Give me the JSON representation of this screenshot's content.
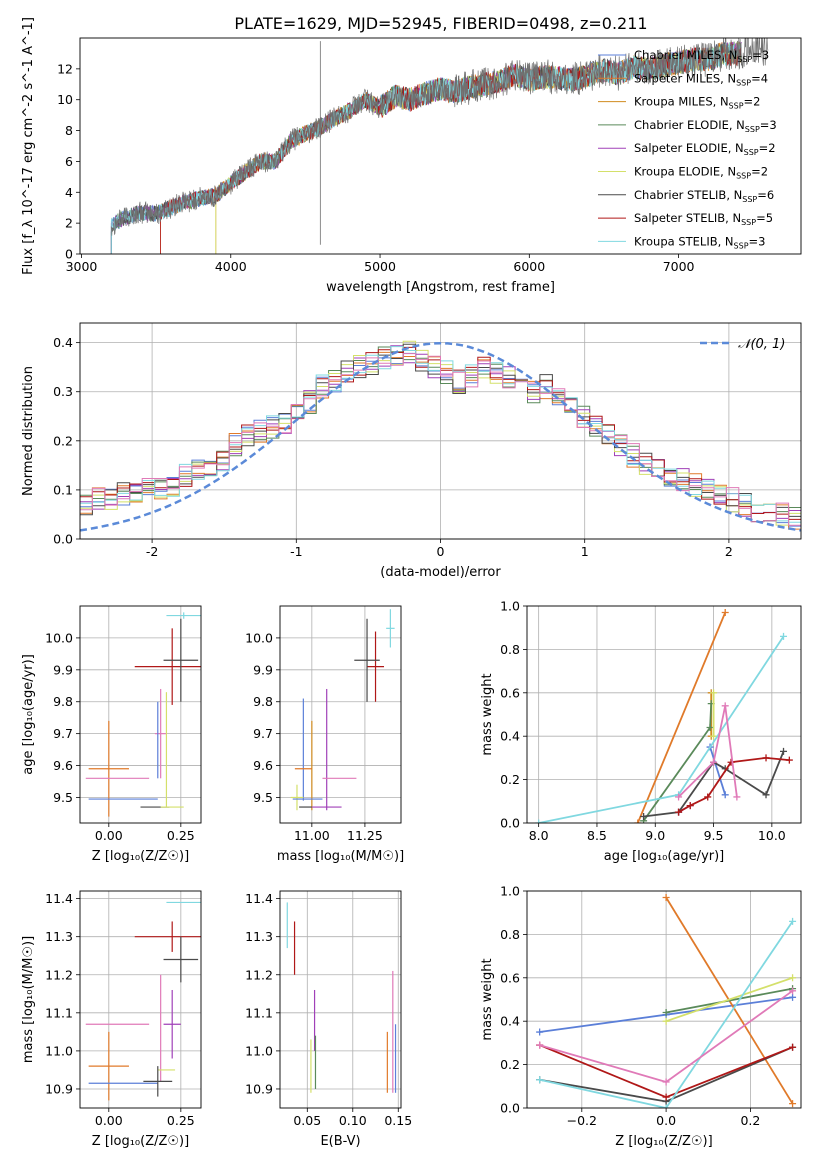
{
  "title": "PLATE=1629, MJD=52945, FIBERID=0498, z=0.211",
  "colors": {
    "chabrier_miles": "#5b7fd8",
    "salpeter_miles": "#e07a2a",
    "kroupa_miles": "#d18b1f",
    "chabrier_elodie": "#5a8a5a",
    "salpeter_elodie": "#a040b8",
    "kroupa_elodie": "#d4e06a",
    "chabrier_stelib": "#4a4a4a",
    "salpeter_stelib": "#b01818",
    "kroupa_stelib": "#80d8e0",
    "pink": "#e07ab8",
    "normal_curve": "#5b8ad8",
    "grid": "#b0b0b0"
  },
  "chart_data": [
    {
      "id": "spectrum",
      "type": "line",
      "xlabel": "wavelength [Angstrom, rest frame]",
      "ylabel": "Flux [f_λ 10^-17 erg cm^-2 s^-1 A^-1]",
      "xlim": [
        2990,
        7820
      ],
      "ylim": [
        0,
        14
      ],
      "xticks": [
        3000,
        4000,
        5000,
        6000,
        7000
      ],
      "yticks": [
        0,
        2,
        4,
        6,
        8,
        10,
        12
      ],
      "grid": false,
      "legend_position": "right",
      "legend": [
        {
          "label": "Chabrier MILES, N",
          "sub": "SSP",
          "suffix": "=3",
          "color": "#5b7fd8"
        },
        {
          "label": "Salpeter MILES, N",
          "sub": "SSP",
          "suffix": "=4",
          "color": "#e07a2a"
        },
        {
          "label": "Kroupa MILES, N",
          "sub": "SSP",
          "suffix": "=2",
          "color": "#d18b1f"
        },
        {
          "label": "Chabrier ELODIE, N",
          "sub": "SSP",
          "suffix": "=3",
          "color": "#5a8a5a"
        },
        {
          "label": "Salpeter ELODIE, N",
          "sub": "SSP",
          "suffix": "=2",
          "color": "#a040b8"
        },
        {
          "label": "Kroupa ELODIE, N",
          "sub": "SSP",
          "suffix": "=2",
          "color": "#d4e06a"
        },
        {
          "label": "Chabrier STELIB, N",
          "sub": "SSP",
          "suffix": "=6",
          "color": "#4a4a4a"
        },
        {
          "label": "Salpeter STELIB, N",
          "sub": "SSP",
          "suffix": "=5",
          "color": "#b01818"
        },
        {
          "label": "Kroupa STELIB, N",
          "sub": "SSP",
          "suffix": "=3",
          "color": "#80d8e0"
        }
      ],
      "series": [
        {
          "name": "data",
          "color": "#707070",
          "x": [
            3200,
            3300,
            3400,
            3500,
            3600,
            3700,
            3800,
            3900,
            4000,
            4100,
            4200,
            4300,
            4400,
            4500,
            4600,
            4700,
            4800,
            4900,
            5000,
            5100,
            5200,
            5300,
            5400,
            5500,
            5600,
            5700,
            5800,
            5900,
            6000,
            6100,
            6200,
            6300,
            6400,
            6500,
            6600,
            6700,
            6800,
            6900,
            7000,
            7100,
            7200,
            7300,
            7400,
            7500,
            7600
          ],
          "y": [
            1.9,
            2.4,
            2.7,
            2.6,
            3.0,
            3.4,
            3.6,
            3.8,
            4.6,
            5.3,
            6.0,
            6.0,
            7.3,
            7.8,
            8.2,
            8.8,
            9.3,
            10.0,
            9.5,
            10.2,
            10.0,
            10.4,
            10.7,
            10.5,
            10.8,
            11.0,
            11.2,
            11.6,
            11.3,
            11.5,
            11.4,
            11.3,
            11.6,
            11.9,
            11.7,
            12.1,
            12.0,
            12.2,
            12.4,
            12.6,
            12.6,
            13.0,
            13.0,
            13.3,
            13.3
          ]
        }
      ]
    },
    {
      "id": "residuals",
      "type": "step",
      "xlabel": "(data-model)/error",
      "ylabel": "Normed distribution",
      "xlim": [
        -2.5,
        2.5
      ],
      "ylim": [
        0,
        0.44
      ],
      "xticks": [
        -2,
        -1,
        0,
        1,
        2
      ],
      "yticks": [
        0.0,
        0.1,
        0.2,
        0.3,
        0.4
      ],
      "grid": true,
      "legend_position": "top-right",
      "legend_label": "𝒩(0, 1)",
      "normal": {
        "mean": 0,
        "sigma": 1
      },
      "hist_profile": [
        0.07,
        0.08,
        0.08,
        0.09,
        0.09,
        0.1,
        0.1,
        0.11,
        0.13,
        0.14,
        0.15,
        0.16,
        0.19,
        0.21,
        0.22,
        0.23,
        0.24,
        0.26,
        0.28,
        0.31,
        0.32,
        0.34,
        0.35,
        0.36,
        0.37,
        0.37,
        0.38,
        0.36,
        0.35,
        0.34,
        0.32,
        0.33,
        0.35,
        0.34,
        0.33,
        0.34,
        0.3,
        0.31,
        0.29,
        0.27,
        0.25,
        0.23,
        0.21,
        0.19,
        0.17,
        0.15,
        0.14,
        0.13,
        0.12,
        0.11,
        0.1,
        0.09,
        0.08,
        0.07,
        0.06,
        0.05,
        0.05,
        0.04
      ]
    },
    {
      "id": "age_vs_Z",
      "type": "errorbar",
      "xlabel": "Z [log₁₀(Z/Z☉)]",
      "ylabel": "age  [log₁₀(age/yr)]",
      "xlim": [
        -0.1,
        0.32
      ],
      "ylim": [
        9.42,
        10.1
      ],
      "xticks": [
        0.0,
        0.25
      ],
      "xticklabels": [
        "0.00",
        "0.25"
      ],
      "yticks": [
        9.5,
        9.6,
        9.7,
        9.8,
        9.9,
        10.0
      ],
      "grid": true,
      "points": [
        {
          "x": 0.26,
          "xerr": 0.06,
          "y": 10.07,
          "yerr": 0.01,
          "color": "#80d8e0"
        },
        {
          "x": 0.22,
          "xerr": 0.13,
          "y": 9.91,
          "yerr": 0.12,
          "color": "#b01818"
        },
        {
          "x": 0.25,
          "xerr": 0.06,
          "y": 9.93,
          "yerr": 0.13,
          "color": "#4a4a4a"
        },
        {
          "x": 0.18,
          "xerr": 0.02,
          "y": 9.7,
          "yerr": 0.14,
          "color": "#e07ab8"
        },
        {
          "x": 0.17,
          "xerr": 0.0,
          "y": 9.68,
          "yerr": 0.12,
          "color": "#5b7fd8"
        },
        {
          "x": 0.2,
          "xerr": 0.0,
          "y": 9.65,
          "yerr": 0.18,
          "color": "#d4e06a"
        },
        {
          "x": 0.0,
          "xerr": 0.07,
          "y": 9.59,
          "yerr": 0.15,
          "color": "#e07a2a"
        },
        {
          "x": 0.03,
          "xerr": 0.11,
          "y": 9.56,
          "yerr": 0.0,
          "color": "#e07ab8"
        },
        {
          "x": 0.05,
          "xerr": 0.12,
          "y": 9.495,
          "yerr": 0.0,
          "color": "#5b7fd8"
        },
        {
          "x": 0.16,
          "xerr": 0.05,
          "y": 9.47,
          "yerr": 0.0,
          "color": "#4a4a4a"
        },
        {
          "x": 0.22,
          "xerr": 0.04,
          "y": 9.47,
          "yerr": 0.0,
          "color": "#d4e06a"
        }
      ]
    },
    {
      "id": "age_vs_mass",
      "type": "errorbar",
      "xlabel": "mass [log₁₀(M/M☉)]",
      "ylabel": "",
      "xlim": [
        10.85,
        11.42
      ],
      "ylim": [
        9.42,
        10.1
      ],
      "xticks": [
        11.0,
        11.25
      ],
      "xticklabels": [
        "11.00",
        "11.25"
      ],
      "yticks": [
        9.5,
        9.6,
        9.7,
        9.8,
        9.9,
        10.0
      ],
      "grid": true,
      "points": [
        {
          "x": 11.37,
          "xerr": 0.02,
          "y": 10.03,
          "yerr": 0.06,
          "color": "#80d8e0"
        },
        {
          "x": 11.3,
          "xerr": 0.04,
          "y": 9.91,
          "yerr": 0.11,
          "color": "#b01818"
        },
        {
          "x": 11.26,
          "xerr": 0.06,
          "y": 9.93,
          "yerr": 0.13,
          "color": "#4a4a4a"
        },
        {
          "x": 10.96,
          "xerr": 0.0,
          "y": 9.65,
          "yerr": 0.16,
          "color": "#5b7fd8"
        },
        {
          "x": 11.07,
          "xerr": 0.0,
          "y": 9.65,
          "yerr": 0.19,
          "color": "#a040b8"
        },
        {
          "x": 11.0,
          "xerr": 0.0,
          "y": 9.6,
          "yerr": 0.14,
          "color": "#d18b1f"
        },
        {
          "x": 10.96,
          "xerr": 0.04,
          "y": 9.59,
          "yerr": 0.0,
          "color": "#e07a2a"
        },
        {
          "x": 11.13,
          "xerr": 0.08,
          "y": 9.56,
          "yerr": 0.0,
          "color": "#e07ab8"
        },
        {
          "x": 10.93,
          "xerr": 0.03,
          "y": 9.5,
          "yerr": 0.04,
          "color": "#d4e06a"
        },
        {
          "x": 10.98,
          "xerr": 0.07,
          "y": 9.495,
          "yerr": 0.0,
          "color": "#5b7fd8"
        },
        {
          "x": 11.07,
          "xerr": 0.07,
          "y": 9.47,
          "yerr": 0.0,
          "color": "#a040b8"
        },
        {
          "x": 10.97,
          "xerr": 0.03,
          "y": 9.47,
          "yerr": 0.0,
          "color": "#4a4a4a"
        }
      ]
    },
    {
      "id": "weight_vs_age",
      "type": "line",
      "xlabel": "age  [log₁₀(age/yr)]",
      "ylabel": "mass weight",
      "xlim": [
        7.9,
        10.25
      ],
      "ylim": [
        0,
        1
      ],
      "xticks": [
        8.0,
        8.5,
        9.0,
        9.5,
        10.0
      ],
      "xticklabels": [
        "8.0",
        "8.5",
        "9.0",
        "9.5",
        "10.0"
      ],
      "yticks": [
        0.0,
        0.2,
        0.4,
        0.6,
        0.8,
        1.0
      ],
      "grid": true,
      "series": [
        {
          "name": "Chabrier MILES",
          "color": "#5b7fd8",
          "x": [
            9.47,
            9.6
          ],
          "y": [
            0.35,
            0.13
          ]
        },
        {
          "name": "Salpeter MILES",
          "color": "#e07a2a",
          "x": [
            8.85,
            9.6
          ],
          "y": [
            0.0,
            0.97
          ]
        },
        {
          "name": "Kroupa MILES",
          "color": "#d18b1f",
          "x": [
            9.48,
            9.48
          ],
          "y": [
            0.4,
            0.6
          ]
        },
        {
          "name": "Chabrier ELODIE",
          "color": "#5a8a5a",
          "x": [
            8.9,
            9.47,
            9.48
          ],
          "y": [
            0.01,
            0.44,
            0.55
          ]
        },
        {
          "name": "Salpeter ELODIE",
          "color": "#a040b8",
          "x": [
            9.2,
            9.3
          ],
          "y": [
            0.05,
            0.08
          ]
        },
        {
          "name": "Kroupa ELODIE",
          "color": "#d4e06a",
          "x": [
            9.5,
            9.5
          ],
          "y": [
            0.4,
            0.6
          ]
        },
        {
          "name": "Chabrier STELIB",
          "color": "#4a4a4a",
          "x": [
            8.9,
            9.2,
            9.5,
            9.6,
            9.95,
            10.1
          ],
          "y": [
            0.03,
            0.05,
            0.28,
            0.25,
            0.13,
            0.33
          ]
        },
        {
          "name": "Salpeter STELIB",
          "color": "#b01818",
          "x": [
            9.2,
            9.3,
            9.45,
            9.65,
            9.95,
            10.15
          ],
          "y": [
            0.05,
            0.08,
            0.12,
            0.28,
            0.3,
            0.29
          ]
        },
        {
          "name": "Kroupa STELIB",
          "color": "#80d8e0",
          "x": [
            8.0,
            9.2,
            10.1
          ],
          "y": [
            0.0,
            0.13,
            0.86
          ]
        },
        {
          "name": "pink",
          "color": "#e07ab8",
          "x": [
            9.2,
            9.5,
            9.6,
            9.7
          ],
          "y": [
            0.12,
            0.28,
            0.54,
            0.12
          ]
        }
      ]
    },
    {
      "id": "mass_vs_Z",
      "type": "errorbar",
      "xlabel": "Z [log₁₀(Z/Z☉)]",
      "ylabel": "mass [log₁₀(M/M☉)]",
      "xlim": [
        -0.1,
        0.32
      ],
      "ylim": [
        10.85,
        11.42
      ],
      "xticks": [
        0.0,
        0.25
      ],
      "xticklabels": [
        "0.00",
        "0.25"
      ],
      "yticks": [
        10.9,
        11.0,
        11.1,
        11.2,
        11.3,
        11.4
      ],
      "grid": true,
      "points": [
        {
          "x": 0.26,
          "xerr": 0.06,
          "y": 11.39,
          "yerr": 0.0,
          "color": "#80d8e0"
        },
        {
          "x": 0.22,
          "xerr": 0.13,
          "y": 11.3,
          "yerr": 0.04,
          "color": "#b01818"
        },
        {
          "x": 0.25,
          "xerr": 0.06,
          "y": 11.24,
          "yerr": 0.06,
          "color": "#4a4a4a"
        },
        {
          "x": 0.22,
          "xerr": 0.03,
          "y": 11.07,
          "yerr": 0.09,
          "color": "#a040b8"
        },
        {
          "x": 0.03,
          "xerr": 0.11,
          "y": 11.07,
          "yerr": 0.0,
          "color": "#e07ab8"
        },
        {
          "x": 0.18,
          "xerr": 0.0,
          "y": 11.06,
          "yerr": 0.14,
          "color": "#e07ab8"
        },
        {
          "x": 0.0,
          "xerr": 0.07,
          "y": 10.96,
          "yerr": 0.09,
          "color": "#e07a2a"
        },
        {
          "x": 0.2,
          "xerr": 0.03,
          "y": 10.95,
          "yerr": 0.0,
          "color": "#d4e06a"
        },
        {
          "x": 0.05,
          "xerr": 0.12,
          "y": 10.915,
          "yerr": 0.0,
          "color": "#5b7fd8"
        },
        {
          "x": 0.17,
          "xerr": 0.05,
          "y": 10.92,
          "yerr": 0.04,
          "color": "#4a4a4a"
        }
      ]
    },
    {
      "id": "mass_vs_EBV",
      "type": "errorbar",
      "xlabel": "E(B-V)",
      "ylabel": "",
      "xlim": [
        0.02,
        0.153
      ],
      "ylim": [
        10.85,
        11.42
      ],
      "xticks": [
        0.05,
        0.1,
        0.15
      ],
      "xticklabels": [
        "0.05",
        "0.10",
        "0.15"
      ],
      "yticks": [
        10.9,
        11.0,
        11.1,
        11.2,
        11.3,
        11.4
      ],
      "grid": true,
      "points": [
        {
          "x": 0.028,
          "xerr": 0.0,
          "y": 11.33,
          "yerr": 0.06,
          "color": "#80d8e0"
        },
        {
          "x": 0.036,
          "xerr": 0.0,
          "y": 11.27,
          "yerr": 0.07,
          "color": "#b01818"
        },
        {
          "x": 0.058,
          "xerr": 0.0,
          "y": 11.08,
          "yerr": 0.08,
          "color": "#a040b8"
        },
        {
          "x": 0.054,
          "xerr": 0.0,
          "y": 10.96,
          "yerr": 0.07,
          "color": "#d4e06a"
        },
        {
          "x": 0.059,
          "xerr": 0.0,
          "y": 10.97,
          "yerr": 0.07,
          "color": "#5a8a5a"
        },
        {
          "x": 0.138,
          "xerr": 0.0,
          "y": 10.97,
          "yerr": 0.08,
          "color": "#e07a2a"
        },
        {
          "x": 0.144,
          "xerr": 0.0,
          "y": 11.05,
          "yerr": 0.16,
          "color": "#e07ab8"
        },
        {
          "x": 0.147,
          "xerr": 0.0,
          "y": 10.98,
          "yerr": 0.09,
          "color": "#5b7fd8"
        }
      ]
    },
    {
      "id": "weight_vs_Z",
      "type": "line",
      "xlabel": "Z [log₁₀(Z/Z☉)]",
      "ylabel": "mass weight",
      "xlim": [
        -0.33,
        0.32
      ],
      "ylim": [
        0,
        1
      ],
      "xticks": [
        -0.2,
        0.0,
        0.2
      ],
      "xticklabels": [
        "−0.2",
        "0.0",
        "0.2"
      ],
      "yticks": [
        0.0,
        0.2,
        0.4,
        0.6,
        0.8,
        1.0
      ],
      "grid": true,
      "series": [
        {
          "name": "Chabrier MILES",
          "color": "#5b7fd8",
          "x": [
            -0.3,
            0.0,
            0.3
          ],
          "y": [
            0.35,
            0.43,
            0.51
          ]
        },
        {
          "name": "Salpeter MILES",
          "color": "#e07a2a",
          "x": [
            0.0,
            0.3
          ],
          "y": [
            0.97,
            0.02
          ]
        },
        {
          "name": "Chabrier ELODIE",
          "color": "#5a8a5a",
          "x": [
            0.0,
            0.3
          ],
          "y": [
            0.44,
            0.55
          ]
        },
        {
          "name": "Kroupa ELODIE",
          "color": "#d4e06a",
          "x": [
            0.0,
            0.3
          ],
          "y": [
            0.4,
            0.6
          ]
        },
        {
          "name": "Chabrier STELIB",
          "color": "#4a4a4a",
          "x": [
            -0.3,
            0.0,
            0.3
          ],
          "y": [
            0.13,
            0.03,
            0.28
          ]
        },
        {
          "name": "Salpeter STELIB",
          "color": "#b01818",
          "x": [
            -0.3,
            0.0,
            0.3
          ],
          "y": [
            0.29,
            0.05,
            0.28
          ]
        },
        {
          "name": "Kroupa STELIB",
          "color": "#80d8e0",
          "x": [
            -0.3,
            0.0,
            0.3
          ],
          "y": [
            0.13,
            0.0,
            0.86
          ]
        },
        {
          "name": "pink",
          "color": "#e07ab8",
          "x": [
            -0.3,
            0.0,
            0.3
          ],
          "y": [
            0.29,
            0.12,
            0.54
          ]
        }
      ]
    }
  ]
}
